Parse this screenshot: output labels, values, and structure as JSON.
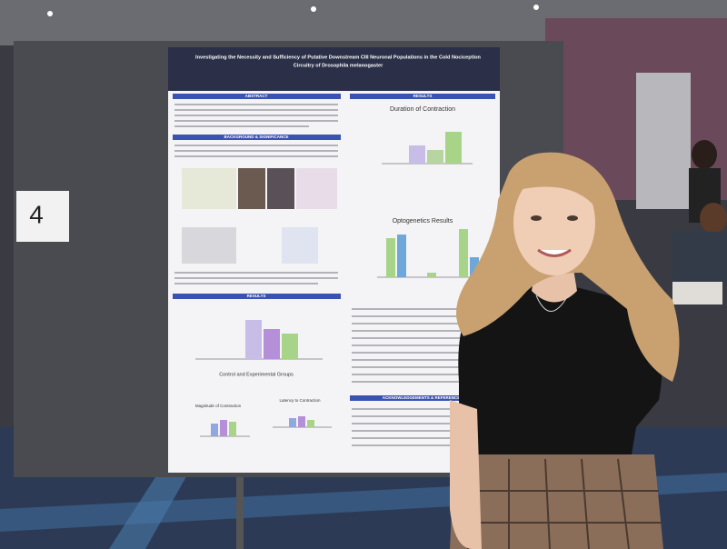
{
  "sign": {
    "number": "4"
  },
  "poster": {
    "title_lines": [
      "Investigating the Necessity and Sufficiency of Putative Downstream CIII Neuronal Populations in the Cold Nociception",
      "Circuitry of Drosophila melanogaster"
    ],
    "sections": {
      "abstract": "ABSTRACT",
      "background": "BACKGROUND & SIGNIFICANCE",
      "results_left": "RESULTS",
      "results_right": "RESULTS",
      "acknowledgements": "ACKNOWLEDGEMENTS & REFERENCES"
    },
    "charts": {
      "duration": "Duration of Contraction",
      "optogenetics": "Optogenetics Results",
      "groups": "Control and Experimental Groups",
      "magnitude": "Magnitude of Contraction",
      "latency": "Latency to Contraction"
    }
  }
}
